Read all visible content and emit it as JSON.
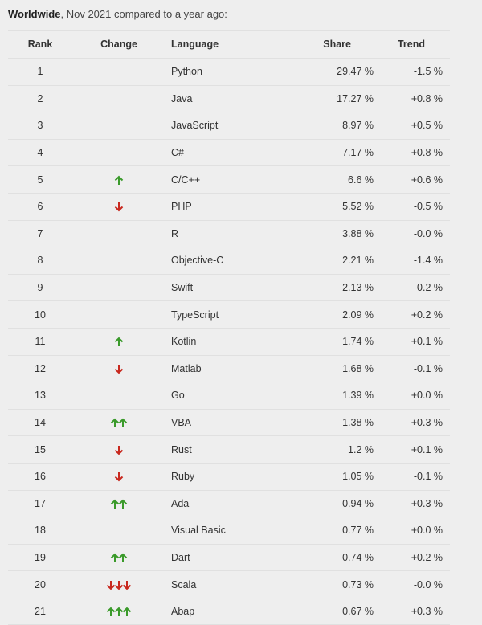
{
  "caption": {
    "bold": "Worldwide",
    "rest": ", Nov 2021 compared to a year ago:"
  },
  "colors": {
    "up": "#3a9a2a",
    "down": "#c8281e"
  },
  "table": {
    "headers": {
      "rank": "Rank",
      "change": "Change",
      "language": "Language",
      "share": "Share",
      "trend": "Trend"
    },
    "rows": [
      {
        "rank": "1",
        "change": "",
        "language": "Python",
        "share": "29.47 %",
        "trend": "-1.5 %"
      },
      {
        "rank": "2",
        "change": "",
        "language": "Java",
        "share": "17.27 %",
        "trend": "+0.8 %"
      },
      {
        "rank": "3",
        "change": "",
        "language": "JavaScript",
        "share": "8.97 %",
        "trend": "+0.5 %"
      },
      {
        "rank": "4",
        "change": "",
        "language": "C#",
        "share": "7.17 %",
        "trend": "+0.8 %"
      },
      {
        "rank": "5",
        "change": "up",
        "language": "C/C++",
        "share": "6.6 %",
        "trend": "+0.6 %"
      },
      {
        "rank": "6",
        "change": "down",
        "language": "PHP",
        "share": "5.52 %",
        "trend": "-0.5 %"
      },
      {
        "rank": "7",
        "change": "",
        "language": "R",
        "share": "3.88 %",
        "trend": "-0.0 %"
      },
      {
        "rank": "8",
        "change": "",
        "language": "Objective-C",
        "share": "2.21 %",
        "trend": "-1.4 %"
      },
      {
        "rank": "9",
        "change": "",
        "language": "Swift",
        "share": "2.13 %",
        "trend": "-0.2 %"
      },
      {
        "rank": "10",
        "change": "",
        "language": "TypeScript",
        "share": "2.09 %",
        "trend": "+0.2 %"
      },
      {
        "rank": "11",
        "change": "up",
        "language": "Kotlin",
        "share": "1.74 %",
        "trend": "+0.1 %"
      },
      {
        "rank": "12",
        "change": "down",
        "language": "Matlab",
        "share": "1.68 %",
        "trend": "-0.1 %"
      },
      {
        "rank": "13",
        "change": "",
        "language": "Go",
        "share": "1.39 %",
        "trend": "+0.0 %"
      },
      {
        "rank": "14",
        "change": "up-up",
        "language": "VBA",
        "share": "1.38 %",
        "trend": "+0.3 %"
      },
      {
        "rank": "15",
        "change": "down",
        "language": "Rust",
        "share": "1.2 %",
        "trend": "+0.1 %"
      },
      {
        "rank": "16",
        "change": "down",
        "language": "Ruby",
        "share": "1.05 %",
        "trend": "-0.1 %"
      },
      {
        "rank": "17",
        "change": "up-up",
        "language": "Ada",
        "share": "0.94 %",
        "trend": "+0.3 %"
      },
      {
        "rank": "18",
        "change": "",
        "language": "Visual Basic",
        "share": "0.77 %",
        "trend": "+0.0 %"
      },
      {
        "rank": "19",
        "change": "up-up",
        "language": "Dart",
        "share": "0.74 %",
        "trend": "+0.2 %"
      },
      {
        "rank": "20",
        "change": "down-down-down",
        "language": "Scala",
        "share": "0.73 %",
        "trend": "-0.0 %"
      },
      {
        "rank": "21",
        "change": "up-up-up",
        "language": "Abap",
        "share": "0.67 %",
        "trend": "+0.3 %"
      }
    ]
  }
}
